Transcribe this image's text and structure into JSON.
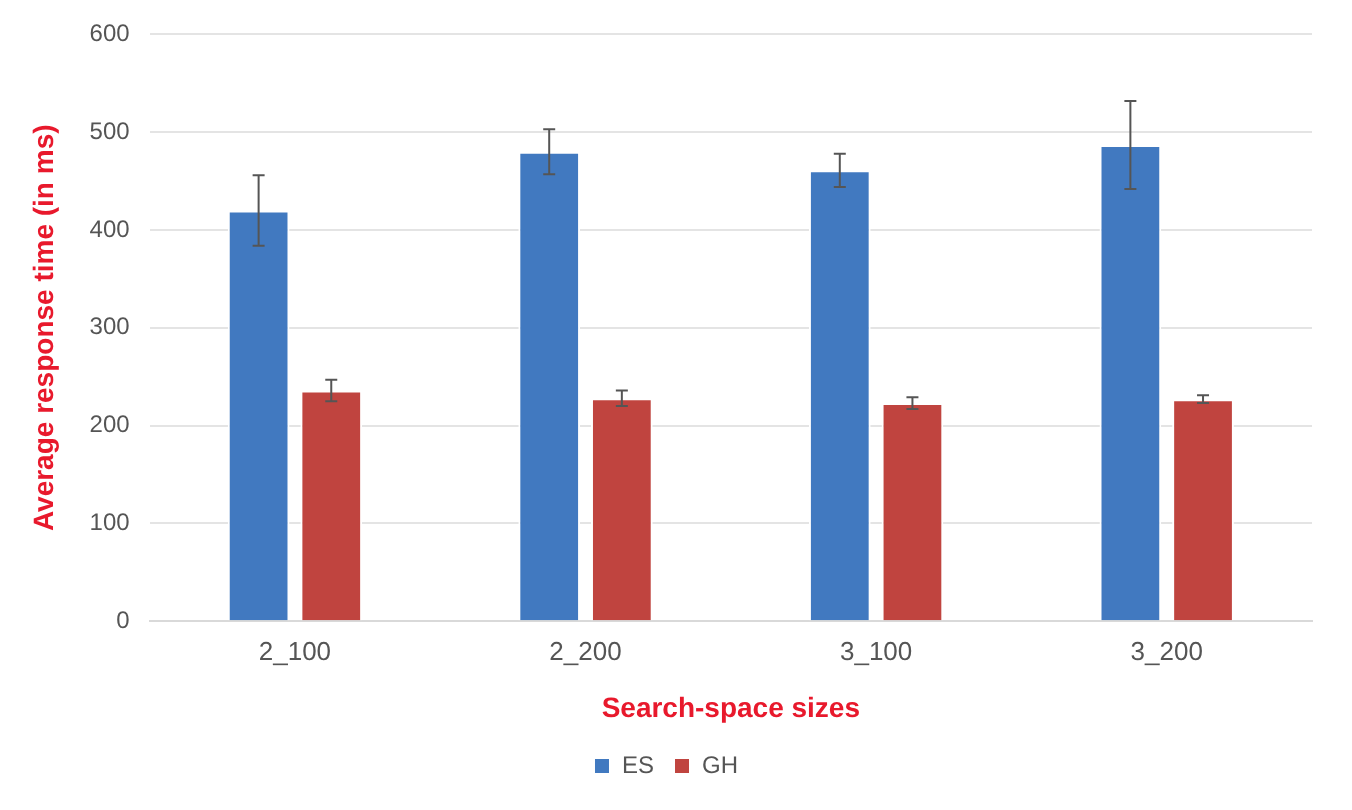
{
  "chart_data": {
    "type": "bar",
    "xlabel": "Search-space sizes",
    "ylabel": "Average response time (in ms)",
    "categories": [
      "2_100",
      "2_200",
      "3_100",
      "3_200"
    ],
    "series": [
      {
        "name": "ES",
        "color": "#4179c0",
        "values": [
          420,
          480,
          461,
          487
        ],
        "errors": [
          36,
          23,
          17,
          45
        ]
      },
      {
        "name": "GH",
        "color": "#c0443f",
        "values": [
          236,
          228,
          223,
          227
        ],
        "errors": [
          11,
          8,
          6,
          4
        ]
      }
    ],
    "ylim": [
      0,
      600
    ],
    "yticks": [
      0,
      100,
      200,
      300,
      400,
      500,
      600
    ],
    "grid": "y",
    "legend": "bottom"
  }
}
